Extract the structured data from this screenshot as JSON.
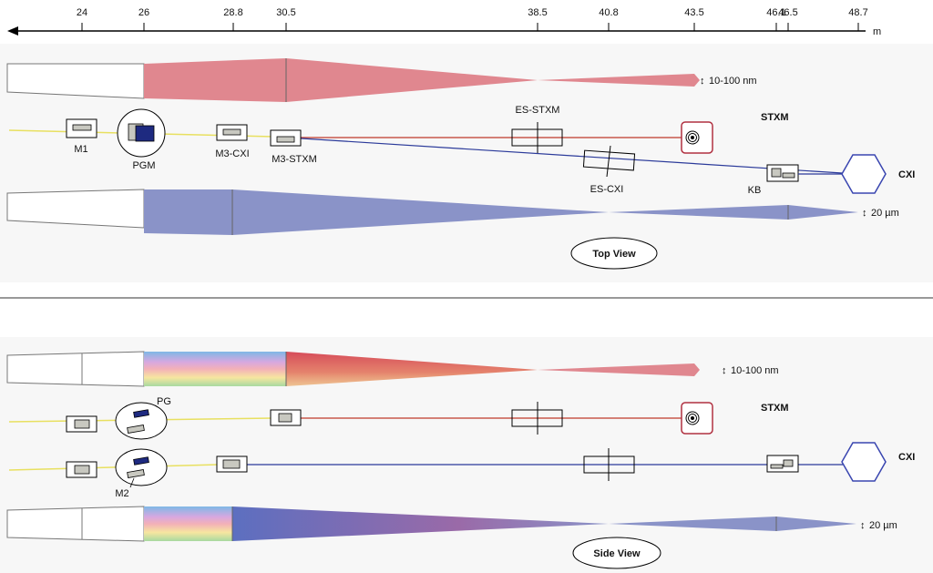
{
  "axis": {
    "unit": "m",
    "ticks": [
      "24",
      "26",
      "28.8",
      "30.5",
      "38.5",
      "40.8",
      "43.5",
      "46.1",
      "46.5",
      "48.7"
    ]
  },
  "top_view": {
    "view_label": "Top View",
    "stxm_label": "STXM",
    "cxi_label": "CXI",
    "stxm_focus": "10-100 nm",
    "cxi_focus": "20 µm",
    "components": {
      "m1": "M1",
      "pgm": "PGM",
      "m3_cxi": "M3-CXI",
      "m3_stxm": "M3-STXM",
      "es_stxm": "ES-STXM",
      "es_cxi": "ES-CXI",
      "kb": "KB"
    }
  },
  "side_view": {
    "view_label": "Side View",
    "stxm_label": "STXM",
    "cxi_label": "CXI",
    "stxm_focus": "10-100 nm",
    "cxi_focus": "20 µm",
    "components": {
      "pg": "PG",
      "m2": "M2"
    }
  },
  "colors": {
    "beam_in": "#e8e060",
    "stxm_beam": "#c0392b",
    "cxi_beam": "#2b3a9a",
    "stxm_envelope": "#e0878f",
    "cxi_envelope": "#8a93c8",
    "detector_stroke": "#b03040",
    "cxi_detector": "#3a46b0",
    "grating": "#1e2a80",
    "mirror_fill": "#c8c8c0"
  }
}
